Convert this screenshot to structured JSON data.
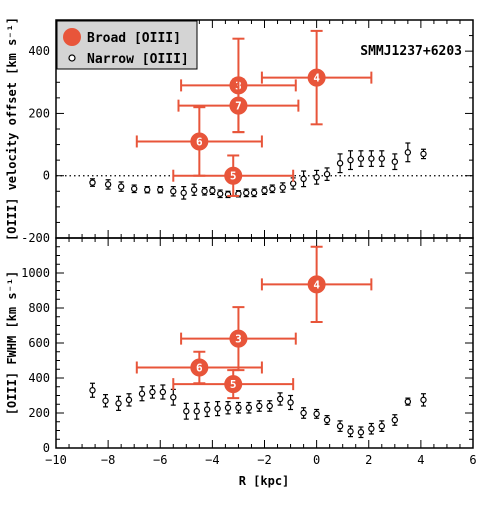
{
  "chart_data": [
    {
      "type": "scatter",
      "panel": "top",
      "object_label": "SMMJ1237+6203",
      "ylabel": "[OIII] velocity offset [km s⁻¹]",
      "xlim": [
        -10,
        6
      ],
      "ylim": [
        -200,
        500
      ],
      "x_ticks": [
        -10,
        -8,
        -6,
        -4,
        -2,
        0,
        2,
        4,
        6
      ],
      "y_ticks": [
        -200,
        0,
        200,
        400
      ],
      "zero_line": "dotted",
      "legend": {
        "placement": "top-left",
        "entries": [
          {
            "label": "Broad [OIII]",
            "marker": "filled-circle",
            "color": "#e8553a"
          },
          {
            "label": "Narrow [OIII]",
            "marker": "small-circle",
            "color": "#000000"
          }
        ]
      },
      "series": [
        {
          "name": "Narrow [OIII]",
          "color": "#000000",
          "points": [
            {
              "x": -8.6,
              "y": -22,
              "yerr": 12
            },
            {
              "x": -8.0,
              "y": -28,
              "yerr": 15
            },
            {
              "x": -7.5,
              "y": -35,
              "yerr": 15
            },
            {
              "x": -7.0,
              "y": -42,
              "yerr": 12
            },
            {
              "x": -6.5,
              "y": -45,
              "yerr": 10
            },
            {
              "x": -6.0,
              "y": -45,
              "yerr": 10
            },
            {
              "x": -5.5,
              "y": -50,
              "yerr": 15
            },
            {
              "x": -5.1,
              "y": -55,
              "yerr": 20
            },
            {
              "x": -4.7,
              "y": -45,
              "yerr": 18
            },
            {
              "x": -4.3,
              "y": -50,
              "yerr": 12
            },
            {
              "x": -4.0,
              "y": -48,
              "yerr": 12
            },
            {
              "x": -3.7,
              "y": -58,
              "yerr": 12
            },
            {
              "x": -3.4,
              "y": -60,
              "yerr": 10
            },
            {
              "x": -3.0,
              "y": -58,
              "yerr": 10
            },
            {
              "x": -2.7,
              "y": -55,
              "yerr": 12
            },
            {
              "x": -2.4,
              "y": -55,
              "yerr": 12
            },
            {
              "x": -2.0,
              "y": -48,
              "yerr": 12
            },
            {
              "x": -1.7,
              "y": -42,
              "yerr": 12
            },
            {
              "x": -1.3,
              "y": -38,
              "yerr": 15
            },
            {
              "x": -0.9,
              "y": -25,
              "yerr": 18
            },
            {
              "x": -0.5,
              "y": -10,
              "yerr": 25
            },
            {
              "x": 0.0,
              "y": -5,
              "yerr": 22
            },
            {
              "x": 0.4,
              "y": 5,
              "yerr": 20
            },
            {
              "x": 0.9,
              "y": 40,
              "yerr": 30
            },
            {
              "x": 1.3,
              "y": 50,
              "yerr": 30
            },
            {
              "x": 1.7,
              "y": 55,
              "yerr": 25
            },
            {
              "x": 2.1,
              "y": 55,
              "yerr": 25
            },
            {
              "x": 2.5,
              "y": 55,
              "yerr": 25
            },
            {
              "x": 3.0,
              "y": 45,
              "yerr": 25
            },
            {
              "x": 3.5,
              "y": 75,
              "yerr": 30
            },
            {
              "x": 4.1,
              "y": 70,
              "yerr": 15
            }
          ]
        },
        {
          "name": "Broad [OIII]",
          "color": "#e8553a",
          "points": [
            {
              "label": "3",
              "x": -3.0,
              "y": 290,
              "xerr": 2.2,
              "yerr": 150
            },
            {
              "label": "4",
              "x": 0.0,
              "y": 315,
              "xerr": 2.1,
              "yerr": 150
            },
            {
              "label": "7",
              "x": -3.0,
              "y": 225,
              "xerr": 2.3,
              "yerr": 85
            },
            {
              "label": "6",
              "x": -4.5,
              "y": 110,
              "xerr": 2.4,
              "yerr": 110
            },
            {
              "label": "5",
              "x": -3.2,
              "y": 0,
              "xerr": 2.3,
              "yerr": 65
            }
          ]
        }
      ]
    },
    {
      "type": "scatter",
      "panel": "bottom",
      "xlabel": "R [kpc]",
      "ylabel": "[OIII] FWHM [km s⁻¹]",
      "xlim": [
        -10,
        6
      ],
      "ylim": [
        0,
        1200
      ],
      "x_ticks": [
        -10,
        -8,
        -6,
        -4,
        -2,
        0,
        2,
        4,
        6
      ],
      "y_ticks": [
        0,
        200,
        400,
        600,
        800,
        1000
      ],
      "series": [
        {
          "name": "Narrow [OIII]",
          "color": "#000000",
          "points": [
            {
              "x": -8.6,
              "y": 330,
              "yerr": 40
            },
            {
              "x": -8.1,
              "y": 270,
              "yerr": 35
            },
            {
              "x": -7.6,
              "y": 255,
              "yerr": 40
            },
            {
              "x": -7.2,
              "y": 275,
              "yerr": 35
            },
            {
              "x": -6.7,
              "y": 310,
              "yerr": 40
            },
            {
              "x": -6.3,
              "y": 320,
              "yerr": 35
            },
            {
              "x": -5.9,
              "y": 320,
              "yerr": 40
            },
            {
              "x": -5.5,
              "y": 290,
              "yerr": 45
            },
            {
              "x": -5.0,
              "y": 210,
              "yerr": 45
            },
            {
              "x": -4.6,
              "y": 210,
              "yerr": 45
            },
            {
              "x": -4.2,
              "y": 220,
              "yerr": 40
            },
            {
              "x": -3.8,
              "y": 225,
              "yerr": 40
            },
            {
              "x": -3.4,
              "y": 230,
              "yerr": 35
            },
            {
              "x": -3.0,
              "y": 230,
              "yerr": 30
            },
            {
              "x": -2.6,
              "y": 230,
              "yerr": 30
            },
            {
              "x": -2.2,
              "y": 240,
              "yerr": 30
            },
            {
              "x": -1.8,
              "y": 240,
              "yerr": 30
            },
            {
              "x": -1.4,
              "y": 280,
              "yerr": 35
            },
            {
              "x": -1.0,
              "y": 260,
              "yerr": 40
            },
            {
              "x": -0.5,
              "y": 200,
              "yerr": 30
            },
            {
              "x": 0.0,
              "y": 195,
              "yerr": 25
            },
            {
              "x": 0.4,
              "y": 160,
              "yerr": 25
            },
            {
              "x": 0.9,
              "y": 125,
              "yerr": 30
            },
            {
              "x": 1.3,
              "y": 95,
              "yerr": 30
            },
            {
              "x": 1.7,
              "y": 90,
              "yerr": 30
            },
            {
              "x": 2.1,
              "y": 110,
              "yerr": 30
            },
            {
              "x": 2.5,
              "y": 125,
              "yerr": 30
            },
            {
              "x": 3.0,
              "y": 160,
              "yerr": 30
            },
            {
              "x": 3.5,
              "y": 265,
              "yerr": 20
            },
            {
              "x": 4.1,
              "y": 275,
              "yerr": 35
            }
          ]
        },
        {
          "name": "Broad [OIII]",
          "color": "#e8553a",
          "points": [
            {
              "label": "4",
              "x": 0.0,
              "y": 935,
              "xerr": 2.1,
              "yerr": 215
            },
            {
              "label": "3",
              "x": -3.0,
              "y": 625,
              "xerr": 2.2,
              "yerr": 180
            },
            {
              "label": "6",
              "x": -4.5,
              "y": 460,
              "xerr": 2.4,
              "yerr": 90
            },
            {
              "label": "5",
              "x": -3.2,
              "y": 365,
              "xerr": 2.3,
              "yerr": 80
            }
          ]
        }
      ]
    }
  ]
}
